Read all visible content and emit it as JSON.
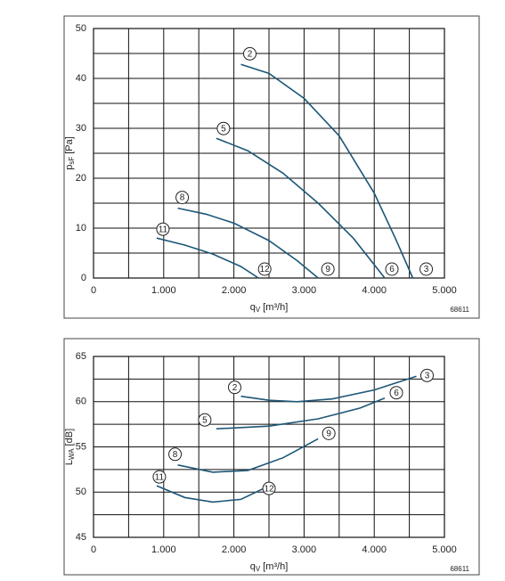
{
  "chart_data": [
    {
      "type": "line",
      "color": "#1d5777",
      "xlabel": {
        "text": "q",
        "sub": "V",
        "unit": "[m³/h]"
      },
      "ylabel": {
        "text": "p",
        "sub": "sF",
        "unit": "[Pa]"
      },
      "code": "68611",
      "xlim": [
        0,
        5000
      ],
      "ylim": [
        0,
        50
      ],
      "xticks": [
        0,
        {
          "value": 1000,
          "label": "1.000"
        },
        {
          "value": 2000,
          "label": "2.000"
        },
        {
          "value": 3000,
          "label": "3.000"
        },
        {
          "value": 4000,
          "label": "4.000"
        },
        {
          "value": 5000,
          "label": "5.000"
        }
      ],
      "yticks": [
        0,
        10,
        20,
        30,
        40,
        50
      ],
      "xminor": [
        500,
        1500,
        2500,
        3500,
        4500
      ],
      "yminor": [
        5,
        15,
        25,
        35,
        45
      ],
      "grid": true,
      "series": [
        {
          "labels": [
            "2",
            "3"
          ],
          "x": [
            2100,
            2500,
            3000,
            3500,
            4000,
            4300,
            4550
          ],
          "values": [
            42.8,
            41,
            36,
            28.5,
            17,
            8,
            0
          ]
        },
        {
          "labels": [
            "5",
            "6"
          ],
          "x": [
            1750,
            2200,
            2700,
            3200,
            3700,
            4150
          ],
          "values": [
            28,
            25.5,
            21,
            15,
            8,
            0
          ]
        },
        {
          "labels": [
            "8",
            "9"
          ],
          "x": [
            1200,
            1600,
            2000,
            2500,
            2900,
            3200
          ],
          "values": [
            14,
            12.8,
            11,
            7.5,
            3.5,
            0
          ]
        },
        {
          "labels": [
            "11",
            "12"
          ],
          "x": [
            900,
            1300,
            1700,
            2100,
            2350
          ],
          "values": [
            8,
            6.6,
            4.8,
            2.3,
            0
          ]
        }
      ]
    },
    {
      "type": "line",
      "color": "#1d5777",
      "xlabel": {
        "text": "q",
        "sub": "V",
        "unit": "[m³/h]"
      },
      "ylabel": {
        "text": "L",
        "sub": "WA",
        "unit": "[dB]"
      },
      "code": "68611",
      "xlim": [
        0,
        5000
      ],
      "ylim": [
        45,
        65
      ],
      "xticks": [
        0,
        {
          "value": 1000,
          "label": "1.000"
        },
        {
          "value": 2000,
          "label": "2.000"
        },
        {
          "value": 3000,
          "label": "3.000"
        },
        {
          "value": 4000,
          "label": "4.000"
        },
        {
          "value": 5000,
          "label": "5.000"
        }
      ],
      "yticks": [
        45,
        50,
        55,
        60,
        65
      ],
      "xminor": [
        500,
        1500,
        2500,
        3500,
        4500
      ],
      "yminor": [
        47.5,
        52.5,
        57.5,
        62.5
      ],
      "grid": true,
      "series": [
        {
          "labels": [
            "2",
            "3"
          ],
          "x": [
            2100,
            2500,
            2900,
            3400,
            4000,
            4600
          ],
          "values": [
            60.6,
            60.15,
            60.0,
            60.3,
            61.3,
            62.8
          ]
        },
        {
          "labels": [
            "5",
            "6"
          ],
          "x": [
            1750,
            2500,
            3200,
            3800,
            4150
          ],
          "values": [
            57.0,
            57.3,
            58.1,
            59.3,
            60.4
          ]
        },
        {
          "labels": [
            "8",
            "9"
          ],
          "x": [
            1200,
            1700,
            2200,
            2700,
            3200
          ],
          "values": [
            53,
            52.2,
            52.4,
            53.8,
            55.9
          ]
        },
        {
          "labels": [
            "11",
            "12"
          ],
          "x": [
            900,
            1300,
            1700,
            2100,
            2450
          ],
          "values": [
            50.7,
            49.4,
            48.9,
            49.2,
            50.5
          ]
        }
      ]
    }
  ]
}
